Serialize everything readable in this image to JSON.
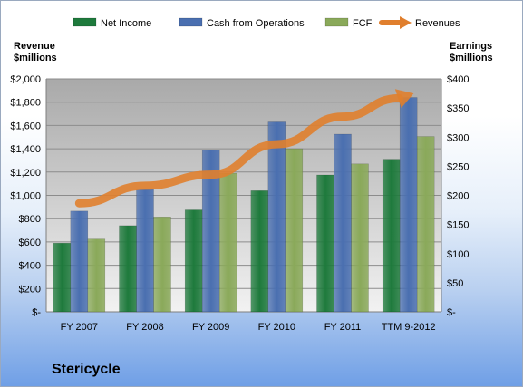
{
  "company": "Stericycle",
  "colors": {
    "net_income": "#1e7a3c",
    "cash_ops": "#4a6fb0",
    "fcf": "#8aa95a",
    "revenues": "#e07f2e",
    "plot_bg": "#bfbfbf"
  },
  "left_axis_title": [
    "Revenue",
    "$millions"
  ],
  "right_axis_title": [
    "Earnings",
    "$millions"
  ],
  "chart_data": {
    "type": "bar",
    "categories": [
      "FY 2007",
      "FY 2008",
      "FY 2009",
      "FY 2010",
      "FY 2011",
      "TTM 9-2012"
    ],
    "series": [
      {
        "name": "Net Income",
        "axis": "right",
        "values": [
          118,
          148,
          175,
          208,
          235,
          262
        ]
      },
      {
        "name": "Cash from Operations",
        "axis": "right",
        "values": [
          173,
          210,
          278,
          326,
          305,
          368
        ]
      },
      {
        "name": "FCF",
        "axis": "right",
        "values": [
          125,
          163,
          238,
          280,
          254,
          301
        ]
      },
      {
        "name": "Revenues",
        "type": "line",
        "axis": "left",
        "values": [
          932,
          1083,
          1178,
          1439,
          1676,
          1860
        ]
      }
    ],
    "left_axis": {
      "ylim": [
        0,
        2000
      ],
      "ticks": [
        0,
        200,
        400,
        600,
        800,
        1000,
        1200,
        1400,
        1600,
        1800,
        2000
      ],
      "tick_labels": [
        "$-",
        "$200",
        "$400",
        "$600",
        "$800",
        "$1,000",
        "$1,200",
        "$1,400",
        "$1,600",
        "$1,800",
        "$2,000"
      ]
    },
    "right_axis": {
      "ylim": [
        0,
        400
      ],
      "ticks": [
        0,
        50,
        100,
        150,
        200,
        250,
        300,
        350,
        400
      ],
      "tick_labels": [
        "$-",
        "$50",
        "$100",
        "$150",
        "$200",
        "$250",
        "$300",
        "$350",
        "$400"
      ]
    },
    "legend_position": "top",
    "grid": true
  }
}
